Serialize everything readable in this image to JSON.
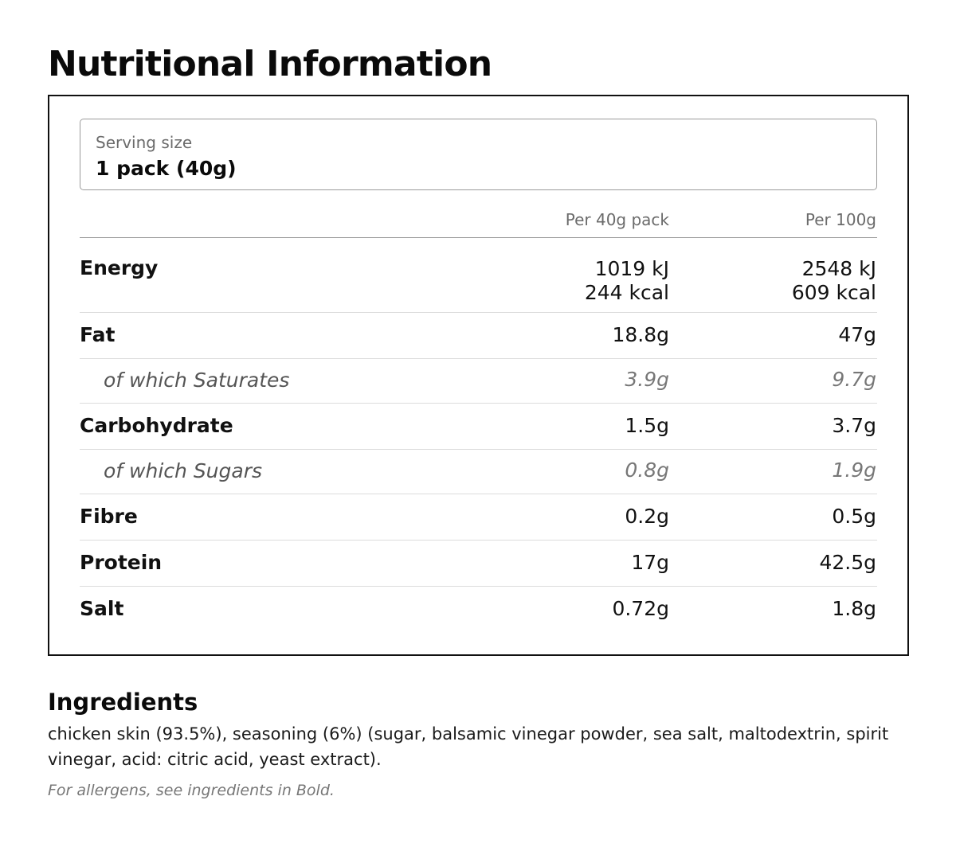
{
  "title": "Nutritional Information",
  "serving": {
    "label": "Serving size",
    "value": "1 pack (40g)"
  },
  "columns": {
    "per_pack": "Per 40g pack",
    "per_100": "Per 100g"
  },
  "rows": {
    "energy": {
      "label": "Energy",
      "per_pack_kj": "1019 kJ",
      "per_pack_kcal": "244 kcal",
      "per_100_kj": "2548 kJ",
      "per_100_kcal": "609 kcal"
    },
    "fat": {
      "label": "Fat",
      "per_pack": "18.8g",
      "per_100": "47g"
    },
    "saturates": {
      "label": "of which Saturates",
      "per_pack": "3.9g",
      "per_100": "9.7g"
    },
    "carbohydrate": {
      "label": "Carbohydrate",
      "per_pack": "1.5g",
      "per_100": "3.7g"
    },
    "sugars": {
      "label": "of which Sugars",
      "per_pack": "0.8g",
      "per_100": "1.9g"
    },
    "fibre": {
      "label": "Fibre",
      "per_pack": "0.2g",
      "per_100": "0.5g"
    },
    "protein": {
      "label": "Protein",
      "per_pack": "17g",
      "per_100": "42.5g"
    },
    "salt": {
      "label": "Salt",
      "per_pack": "0.72g",
      "per_100": "1.8g"
    }
  },
  "ingredients": {
    "title": "Ingredients",
    "text": "chicken skin (93.5%), seasoning (6%) (sugar, balsamic vinegar powder, sea salt, maltodextrin, spirit vinegar, acid: citric acid, yeast extract).",
    "allergen_note": "For allergens, see ingredients in Bold."
  }
}
